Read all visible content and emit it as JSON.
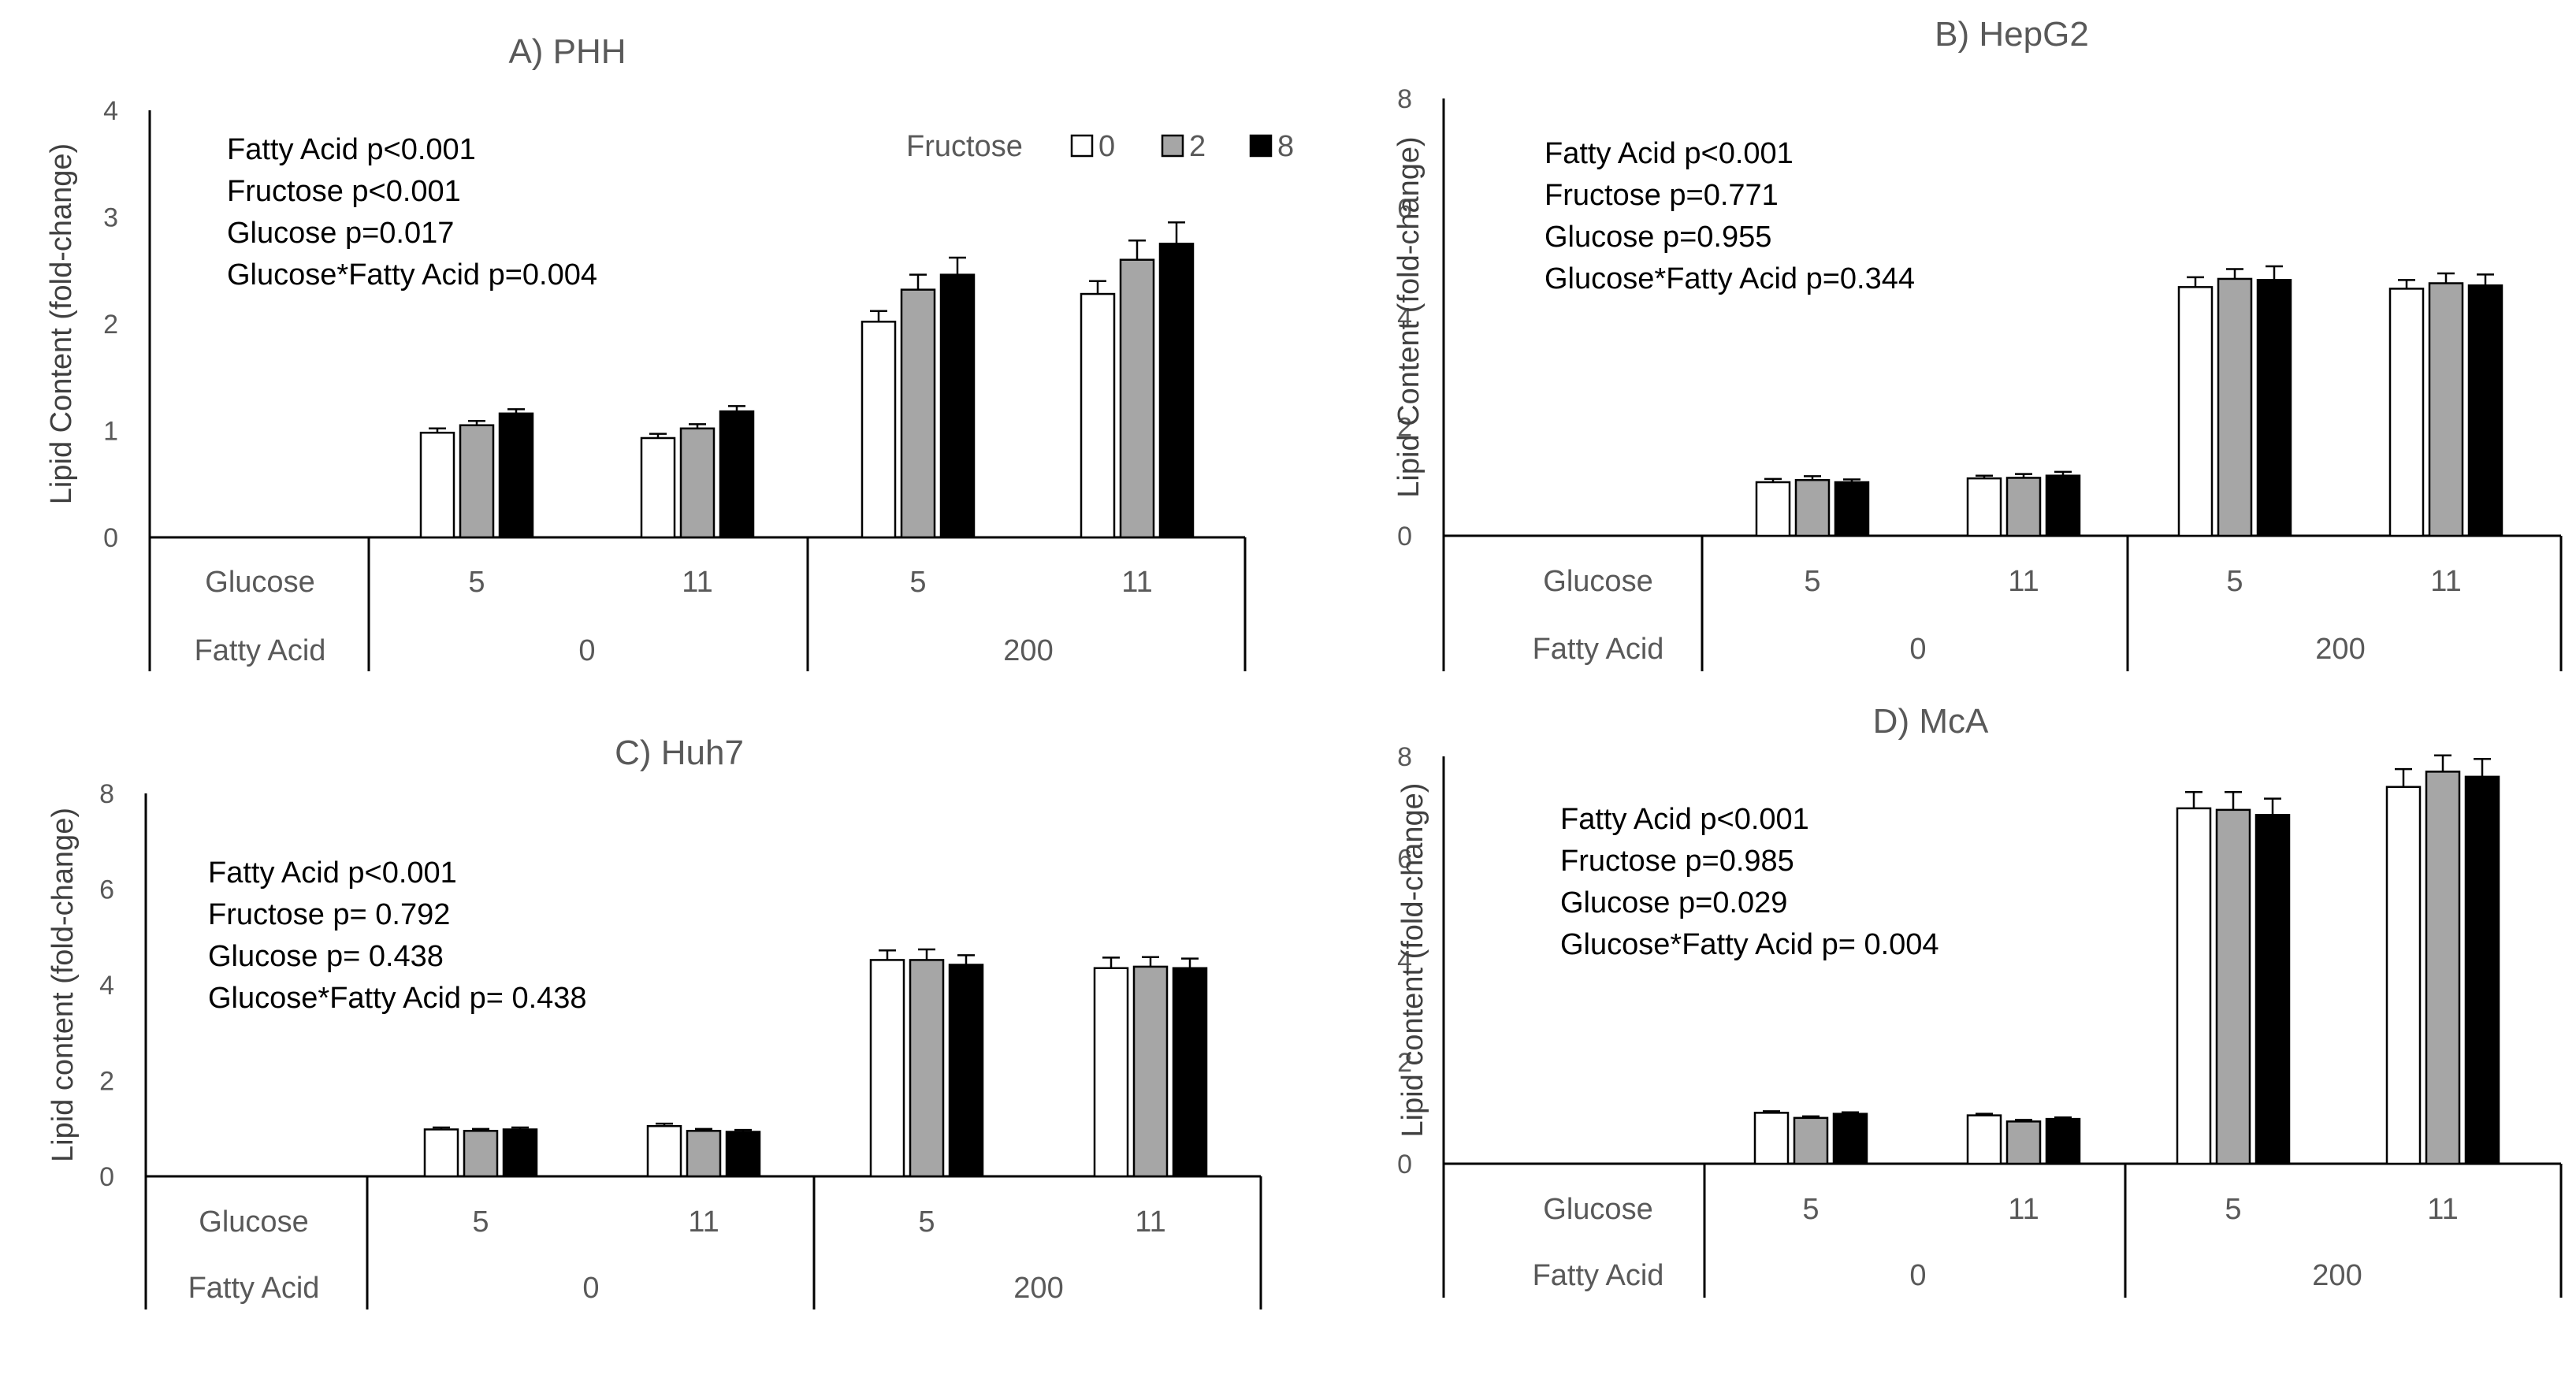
{
  "chart_data": [
    {
      "type": "bar",
      "panel": "A",
      "title": "A) PHH",
      "ylabel": "Lipid  Content (fold-change)",
      "ylim": [
        0,
        4
      ],
      "yticks": [
        "0",
        "1",
        "2",
        "3",
        "4"
      ],
      "row_labels": [
        "Glucose",
        "Fatty Acid"
      ],
      "categories": [
        "5",
        "11",
        "5",
        "11"
      ],
      "groups": [
        "0",
        "200"
      ],
      "legend": {
        "title": "Fructose",
        "entries": [
          "0",
          "2",
          "8"
        ]
      },
      "series": [
        {
          "name": "0",
          "values": [
            0.98,
            0.93,
            2.02,
            2.28
          ],
          "errors": [
            0.04,
            0.04,
            0.1,
            0.12
          ]
        },
        {
          "name": "2",
          "values": [
            1.05,
            1.02,
            2.32,
            2.6
          ],
          "errors": [
            0.04,
            0.04,
            0.14,
            0.18
          ]
        },
        {
          "name": "8",
          "values": [
            1.16,
            1.18,
            2.46,
            2.75
          ],
          "errors": [
            0.04,
            0.05,
            0.16,
            0.2
          ]
        }
      ],
      "stats": [
        "Fatty Acid p<0.001",
        "Fructose  p<0.001",
        "Glucose   p=0.017",
        "Glucose*Fatty Acid   p=0.004"
      ]
    },
    {
      "type": "bar",
      "panel": "B",
      "title": "B) HepG2",
      "ylabel": "Lipid Content (fold-change)",
      "ylim": [
        0,
        8
      ],
      "yticks": [
        "0",
        "2",
        "4",
        "6",
        "8"
      ],
      "row_labels": [
        "Glucose",
        "Fatty Acid"
      ],
      "categories": [
        "5",
        "11",
        "5",
        "11"
      ],
      "groups": [
        "0",
        "200"
      ],
      "series": [
        {
          "name": "0",
          "values": [
            0.98,
            1.05,
            4.55,
            4.52
          ],
          "errors": [
            0.06,
            0.05,
            0.18,
            0.16
          ]
        },
        {
          "name": "2",
          "values": [
            1.02,
            1.06,
            4.7,
            4.62
          ],
          "errors": [
            0.07,
            0.07,
            0.18,
            0.18
          ]
        },
        {
          "name": "8",
          "values": [
            0.98,
            1.1,
            4.68,
            4.58
          ],
          "errors": [
            0.05,
            0.07,
            0.25,
            0.2
          ]
        }
      ],
      "stats": [
        "Fatty Acid p<0.001",
        "Fructose   p=0.771",
        "Glucose    p=0.955",
        "Glucose*Fatty Acid p=0.344"
      ]
    },
    {
      "type": "bar",
      "panel": "C",
      "title": "C) Huh7",
      "ylabel": "Lipid content (fold-change)",
      "ylim": [
        0,
        8
      ],
      "yticks": [
        "0",
        "2",
        "4",
        "6",
        "8"
      ],
      "row_labels": [
        "Glucose",
        "Fatty Acid"
      ],
      "categories": [
        "5",
        "11",
        "5",
        "11"
      ],
      "groups": [
        "0",
        "200"
      ],
      "series": [
        {
          "name": "0",
          "values": [
            0.98,
            1.05,
            4.52,
            4.35
          ],
          "errors": [
            0.04,
            0.05,
            0.2,
            0.22
          ]
        },
        {
          "name": "2",
          "values": [
            0.95,
            0.95,
            4.52,
            4.38
          ],
          "errors": [
            0.04,
            0.04,
            0.22,
            0.2
          ]
        },
        {
          "name": "8",
          "values": [
            0.98,
            0.93,
            4.42,
            4.35
          ],
          "errors": [
            0.04,
            0.04,
            0.2,
            0.2
          ]
        }
      ],
      "stats": [
        "Fatty Acid p<0.001",
        "Fructose   p= 0.792",
        "Glucose    p= 0.438",
        "Glucose*Fatty Acid   p= 0.438"
      ]
    },
    {
      "type": "bar",
      "panel": "D",
      "title": "D) McA",
      "ylabel": "Lipid content (fold-change)",
      "ylim": [
        0,
        8
      ],
      "yticks": [
        "0",
        "2",
        "4",
        "6",
        "8"
      ],
      "row_labels": [
        "Glucose",
        "Fatty Acid"
      ],
      "categories": [
        "5",
        "11",
        "5",
        "11"
      ],
      "groups": [
        "0",
        "200"
      ],
      "series": [
        {
          "name": "0",
          "values": [
            1.0,
            0.95,
            6.98,
            7.4
          ],
          "errors": [
            0.03,
            0.03,
            0.32,
            0.35
          ]
        },
        {
          "name": "2",
          "values": [
            0.9,
            0.83,
            6.95,
            7.7
          ],
          "errors": [
            0.03,
            0.03,
            0.35,
            0.32
          ]
        },
        {
          "name": "8",
          "values": [
            0.98,
            0.88,
            6.85,
            7.6
          ],
          "errors": [
            0.03,
            0.03,
            0.32,
            0.35
          ]
        }
      ],
      "stats": [
        "Fatty Acid p<0.001",
        "Fructose    p=0.985",
        "Glucose     p=0.029",
        "Glucose*Fatty Acid  p= 0.004"
      ]
    }
  ],
  "colors": {
    "series": [
      "#ffffff",
      "#a6a6a6",
      "#000000"
    ],
    "axis": "#000000",
    "text": "#595959"
  }
}
